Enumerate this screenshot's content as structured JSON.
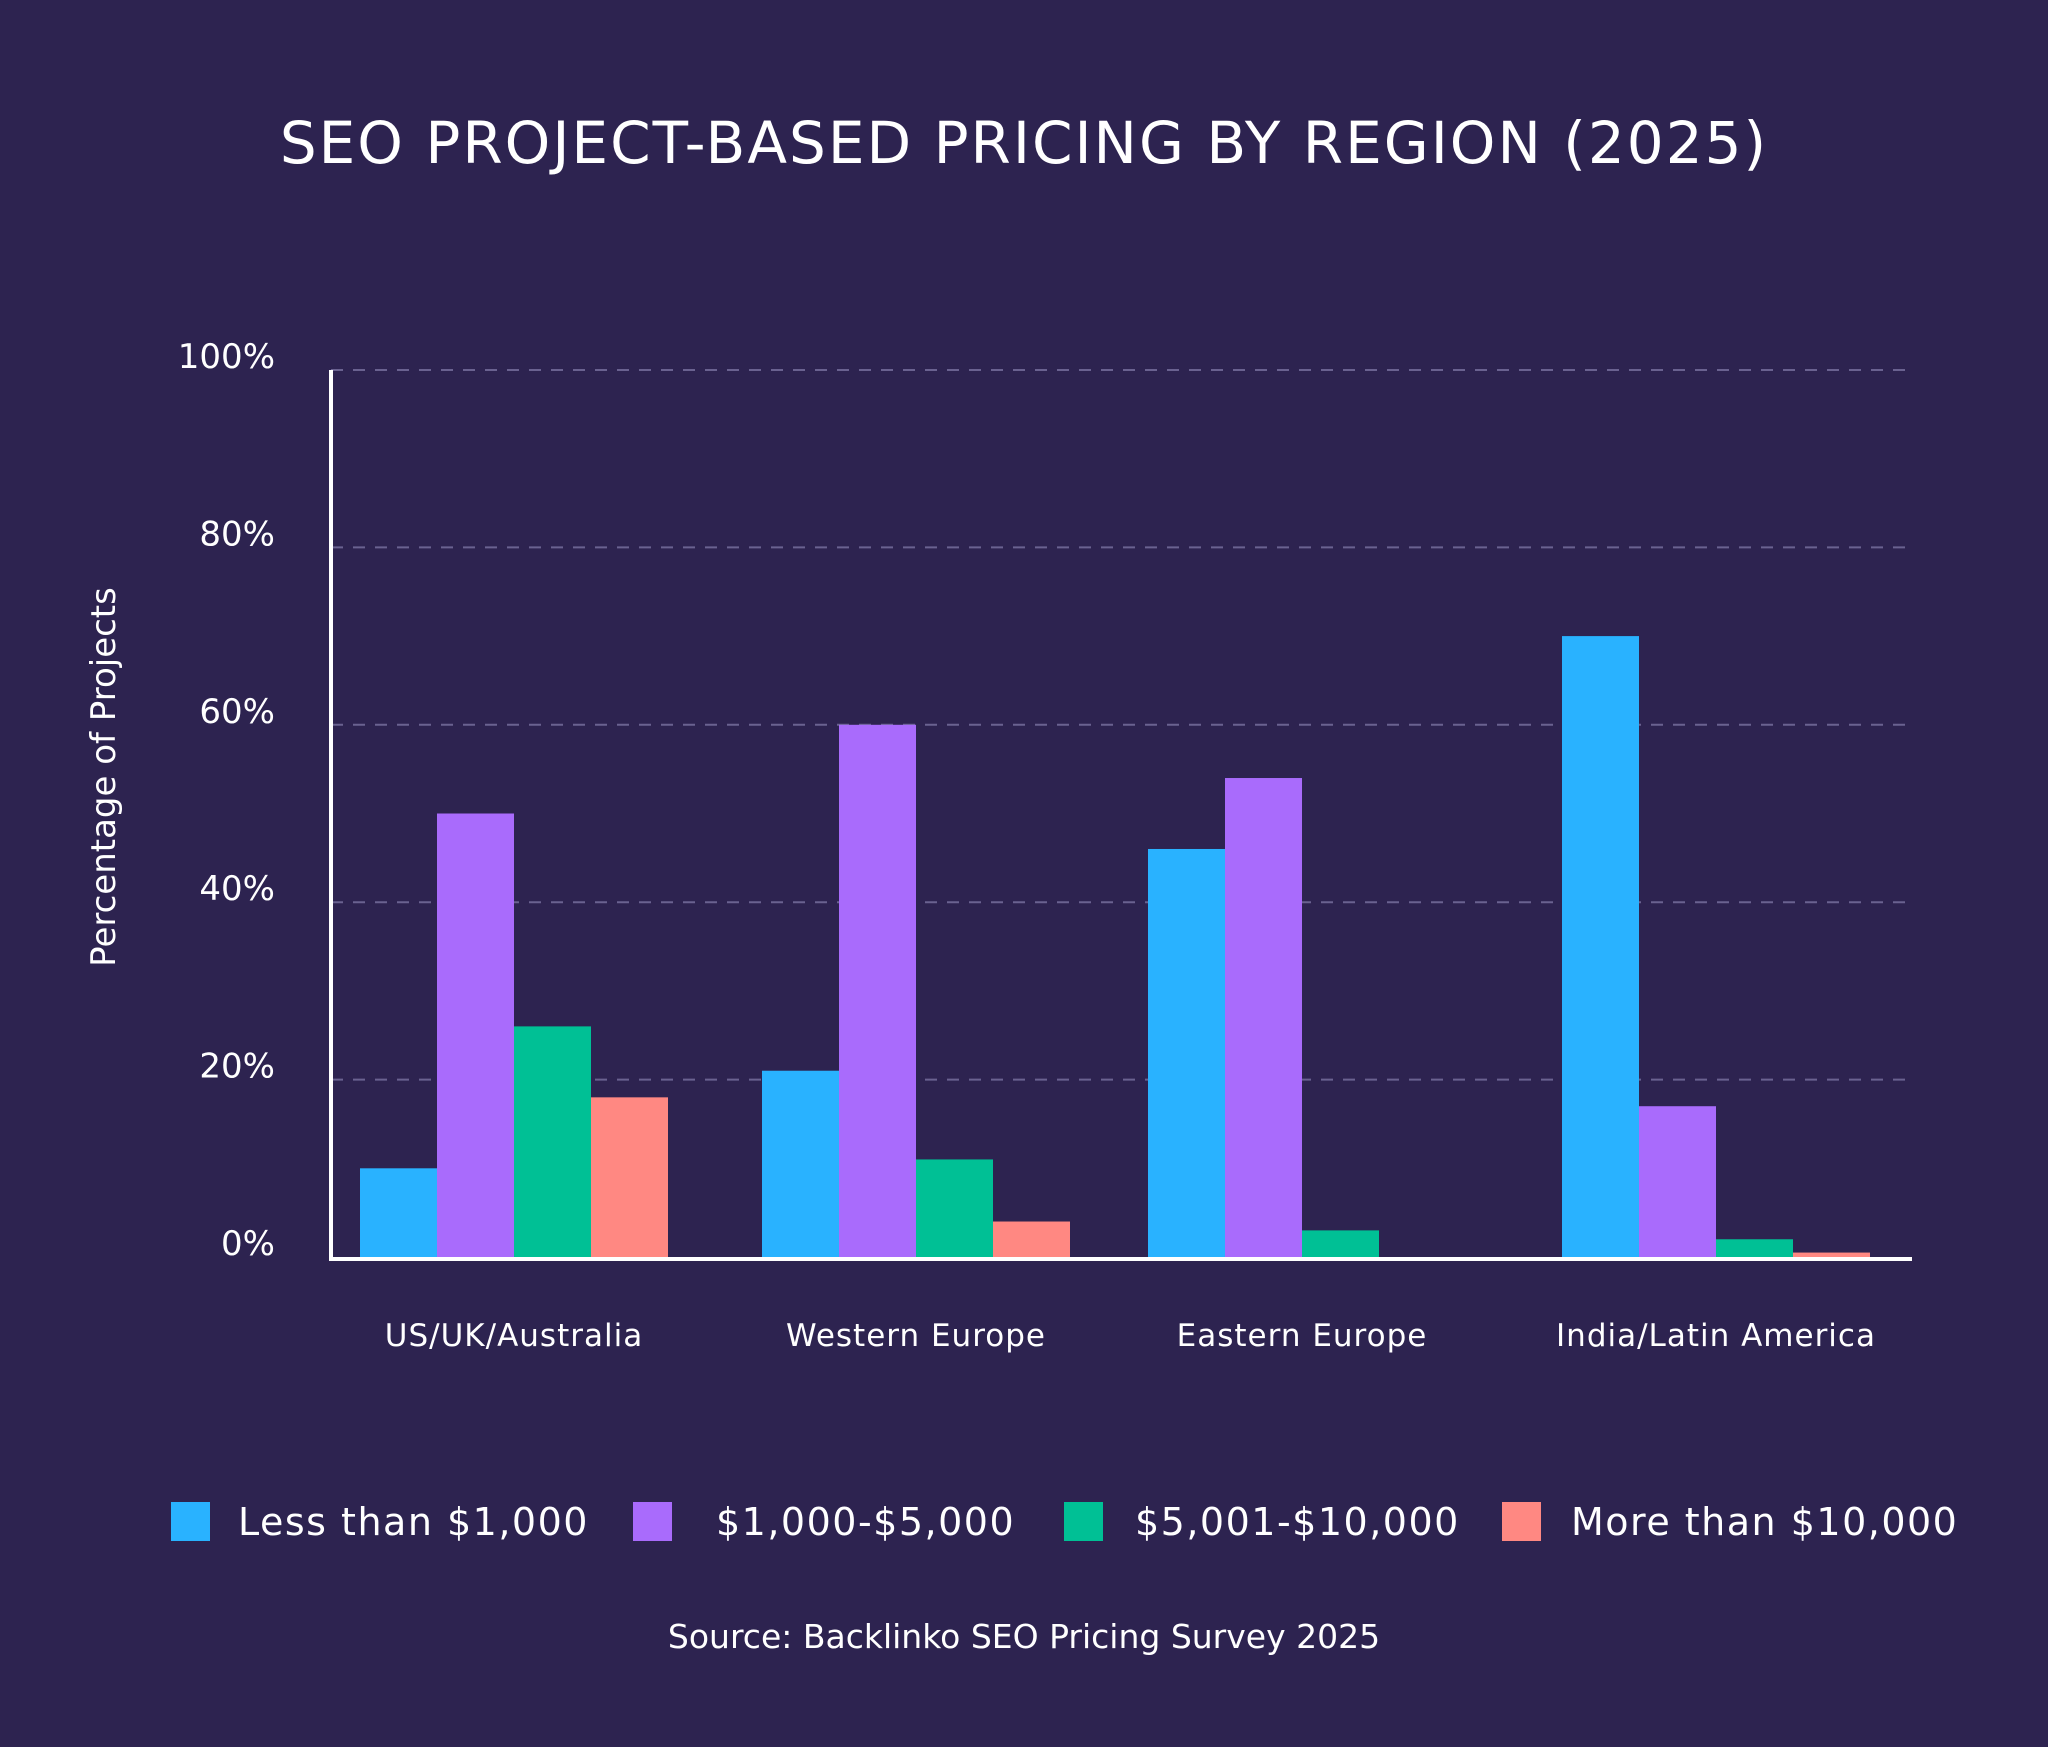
{
  "chart_data": {
    "type": "bar",
    "title": "SEO PROJECT-BASED PRICING BY REGION (2025)",
    "xlabel": "",
    "ylabel": "Percentage of Projects",
    "ylim": [
      0,
      100
    ],
    "yticks": [
      "0%",
      "20%",
      "40%",
      "60%",
      "80%",
      "100%"
    ],
    "ytick_values": [
      0,
      20,
      40,
      60,
      80,
      100
    ],
    "grid": true,
    "legend_position": "bottom",
    "categories": [
      "US/UK/Australia",
      "Western Europe",
      "Eastern Europe",
      "India/Latin America"
    ],
    "series": [
      {
        "name": "Less than $1,000",
        "color": "#29b2ff",
        "values": [
          10,
          21,
          46,
          70
        ]
      },
      {
        "name": "$1,000-$5,000",
        "color": "#a96bfc",
        "values": [
          50,
          60,
          54,
          17
        ]
      },
      {
        "name": "$5,001-$10,000",
        "color": "#00c095",
        "values": [
          26,
          11,
          3,
          2
        ]
      },
      {
        "name": "More than $10,000",
        "color": "#ff8882",
        "values": [
          18,
          4,
          0,
          0.5
        ]
      }
    ],
    "source": "Source: Backlinko SEO Pricing Survey 2025"
  },
  "colors": {
    "background": "#2d2350",
    "text": "#ffffff",
    "grid": "#6a6290"
  }
}
